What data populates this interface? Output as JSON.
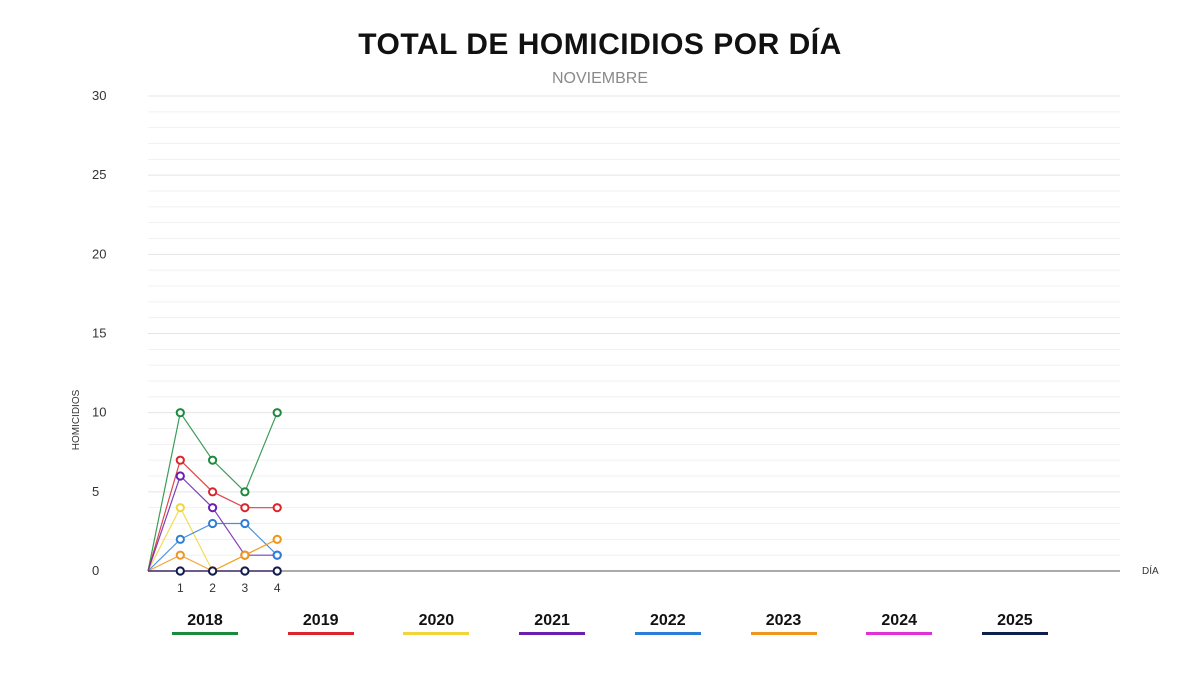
{
  "chart_data": {
    "type": "line",
    "title": "TOTAL DE HOMICIDIOS POR DÍA",
    "subtitle": "NOVIEMBRE",
    "xlabel": "DÍA",
    "ylabel": "HOMICIDIOS",
    "x": [
      0,
      1,
      2,
      3,
      4
    ],
    "x_tick_labels": [
      "1",
      "2",
      "3",
      "4"
    ],
    "xlim": [
      0,
      31
    ],
    "ylim": [
      0,
      30
    ],
    "y_ticks": [
      0,
      5,
      10,
      15,
      20,
      25,
      30
    ],
    "grid": true,
    "legend_position": "bottom",
    "series": [
      {
        "name": "2018",
        "color": "#1a8a3c",
        "values": [
          0,
          10,
          7,
          5,
          10
        ]
      },
      {
        "name": "2019",
        "color": "#d8262c",
        "values": [
          0,
          7,
          5,
          4,
          4
        ]
      },
      {
        "name": "2020",
        "color": "#f2d53c",
        "values": [
          0,
          4,
          0,
          1,
          2
        ]
      },
      {
        "name": "2021",
        "color": "#6a1fb0",
        "values": [
          0,
          6,
          4,
          1,
          1
        ]
      },
      {
        "name": "2022",
        "color": "#2b7fd8",
        "values": [
          0,
          2,
          3,
          3,
          1
        ]
      },
      {
        "name": "2023",
        "color": "#f0961e",
        "values": [
          0,
          1,
          0,
          1,
          2
        ]
      },
      {
        "name": "2024",
        "color": "#e030d8",
        "values": [
          0,
          0,
          0,
          0,
          0
        ]
      },
      {
        "name": "2025",
        "color": "#0d1f4a",
        "values": [
          0,
          0,
          0,
          0,
          0
        ]
      }
    ]
  }
}
